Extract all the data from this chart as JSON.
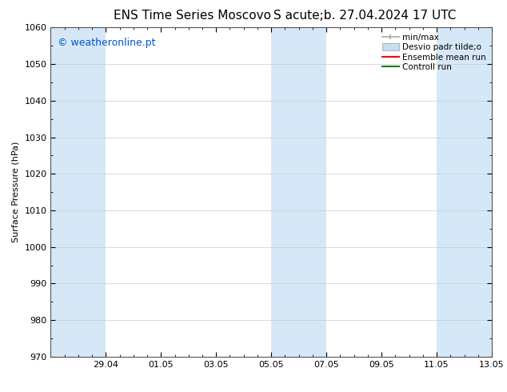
{
  "title_left": "ENS Time Series Moscovo",
  "title_right": "S acute;b. 27.04.2024 17 UTC",
  "ylabel": "Surface Pressure (hPa)",
  "ylim": [
    970,
    1060
  ],
  "yticks": [
    970,
    980,
    990,
    1000,
    1010,
    1020,
    1030,
    1040,
    1050,
    1060
  ],
  "xtick_labels": [
    "29.04",
    "01.05",
    "03.05",
    "05.05",
    "07.05",
    "09.05",
    "11.05",
    "13.05"
  ],
  "band_color": "#d6e8f7",
  "background_color": "#ffffff",
  "watermark": "© weatheronline.pt",
  "watermark_color": "#0055cc",
  "fig_width": 6.34,
  "fig_height": 4.9,
  "dpi": 100,
  "title_fontsize": 11,
  "axis_fontsize": 8,
  "watermark_fontsize": 9,
  "legend_fontsize": 7.5,
  "ylabel_fontsize": 8
}
